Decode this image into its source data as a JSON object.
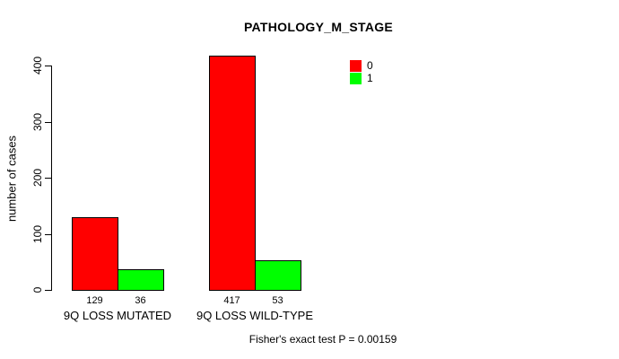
{
  "chart_data": {
    "type": "bar",
    "title": "PATHOLOGY_M_STAGE",
    "categories": [
      "9Q LOSS MUTATED",
      "9Q LOSS WILD-TYPE"
    ],
    "series": [
      {
        "name": "0",
        "color": "#FF0000",
        "values": [
          129,
          417
        ]
      },
      {
        "name": "1",
        "color": "#00FF00",
        "values": [
          36,
          53
        ]
      }
    ],
    "ylabel": "number of cases",
    "xlabel": "",
    "ylim": [
      0,
      400
    ],
    "yticks": [
      0,
      100,
      200,
      300,
      400
    ],
    "grid": false,
    "legend_position": "inside-top-right",
    "bar_value_labels": true,
    "footnote": "Fisher's exact test P = 0.00159"
  }
}
